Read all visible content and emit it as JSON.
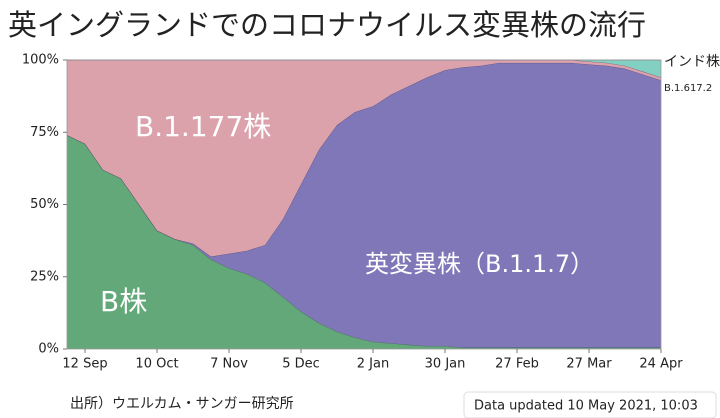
{
  "chart_data": {
    "type": "stacked_area",
    "title": "英イングランドでのコロナウイルス変異株の流行",
    "source": "出所）ウエルカム・サンガー研究所",
    "updated": "Data updated 10 May 2021, 10:03",
    "categories": [
      null,
      "12 Sep",
      null,
      null,
      null,
      "10 Oct",
      null,
      null,
      null,
      "7 Nov",
      null,
      null,
      null,
      "5 Dec",
      null,
      null,
      null,
      "2 Jan",
      null,
      null,
      null,
      "30 Jan",
      null,
      null,
      null,
      "27 Feb",
      null,
      null,
      null,
      "27 Mar",
      null,
      null,
      null,
      "24 Apr"
    ],
    "ylim": [
      0,
      100
    ],
    "yticks": [
      {
        "value": 0,
        "label": "0%"
      },
      {
        "value": 25,
        "label": "25%"
      },
      {
        "value": 50,
        "label": "50%"
      },
      {
        "value": 75,
        "label": "75%"
      },
      {
        "value": 100,
        "label": "100%"
      }
    ],
    "series": [
      {
        "name": "B株",
        "color": "#62a878",
        "values": [
          74,
          71,
          62,
          59,
          50,
          41,
          38,
          36,
          31,
          28,
          26,
          23,
          18,
          13,
          9,
          6,
          4,
          2.5,
          2,
          1.5,
          1,
          1,
          0.5,
          0.5,
          0.5,
          0.5,
          0.5,
          0.5,
          0.5,
          0.5,
          0.5,
          0.5,
          0.5,
          0.5
        ]
      },
      {
        "name": "英変異株（B.1.1.7）",
        "color": "#8077b8",
        "values": [
          0,
          0,
          0,
          0,
          0,
          0,
          0,
          0.5,
          1,
          5,
          8,
          13,
          27,
          44,
          60,
          71.5,
          78,
          81.5,
          86,
          89.5,
          93,
          95.5,
          97,
          97.5,
          98.5,
          98.5,
          98.5,
          98.5,
          98.5,
          98,
          97.5,
          96.5,
          94.5,
          92.5
        ]
      },
      {
        "name": "B.1.177株",
        "color": "#dca2ac",
        "values": [
          26,
          29,
          38,
          41,
          50,
          59,
          62,
          63.5,
          68,
          67,
          66,
          64,
          55,
          43,
          31,
          22.5,
          18,
          16,
          12,
          9,
          6,
          3.5,
          2.5,
          2,
          1,
          1,
          1,
          1,
          1,
          1,
          1,
          1,
          1,
          1
        ]
      },
      {
        "name": "インド株",
        "code": "B.1.617.2",
        "color": "#82d0c2",
        "values": [
          0,
          0,
          0,
          0,
          0,
          0,
          0,
          0,
          0,
          0,
          0,
          0,
          0,
          0,
          0,
          0,
          0,
          0,
          0,
          0,
          0,
          0,
          0,
          0,
          0,
          0,
          0,
          0,
          0,
          0.5,
          1,
          2,
          4,
          6
        ]
      }
    ]
  }
}
